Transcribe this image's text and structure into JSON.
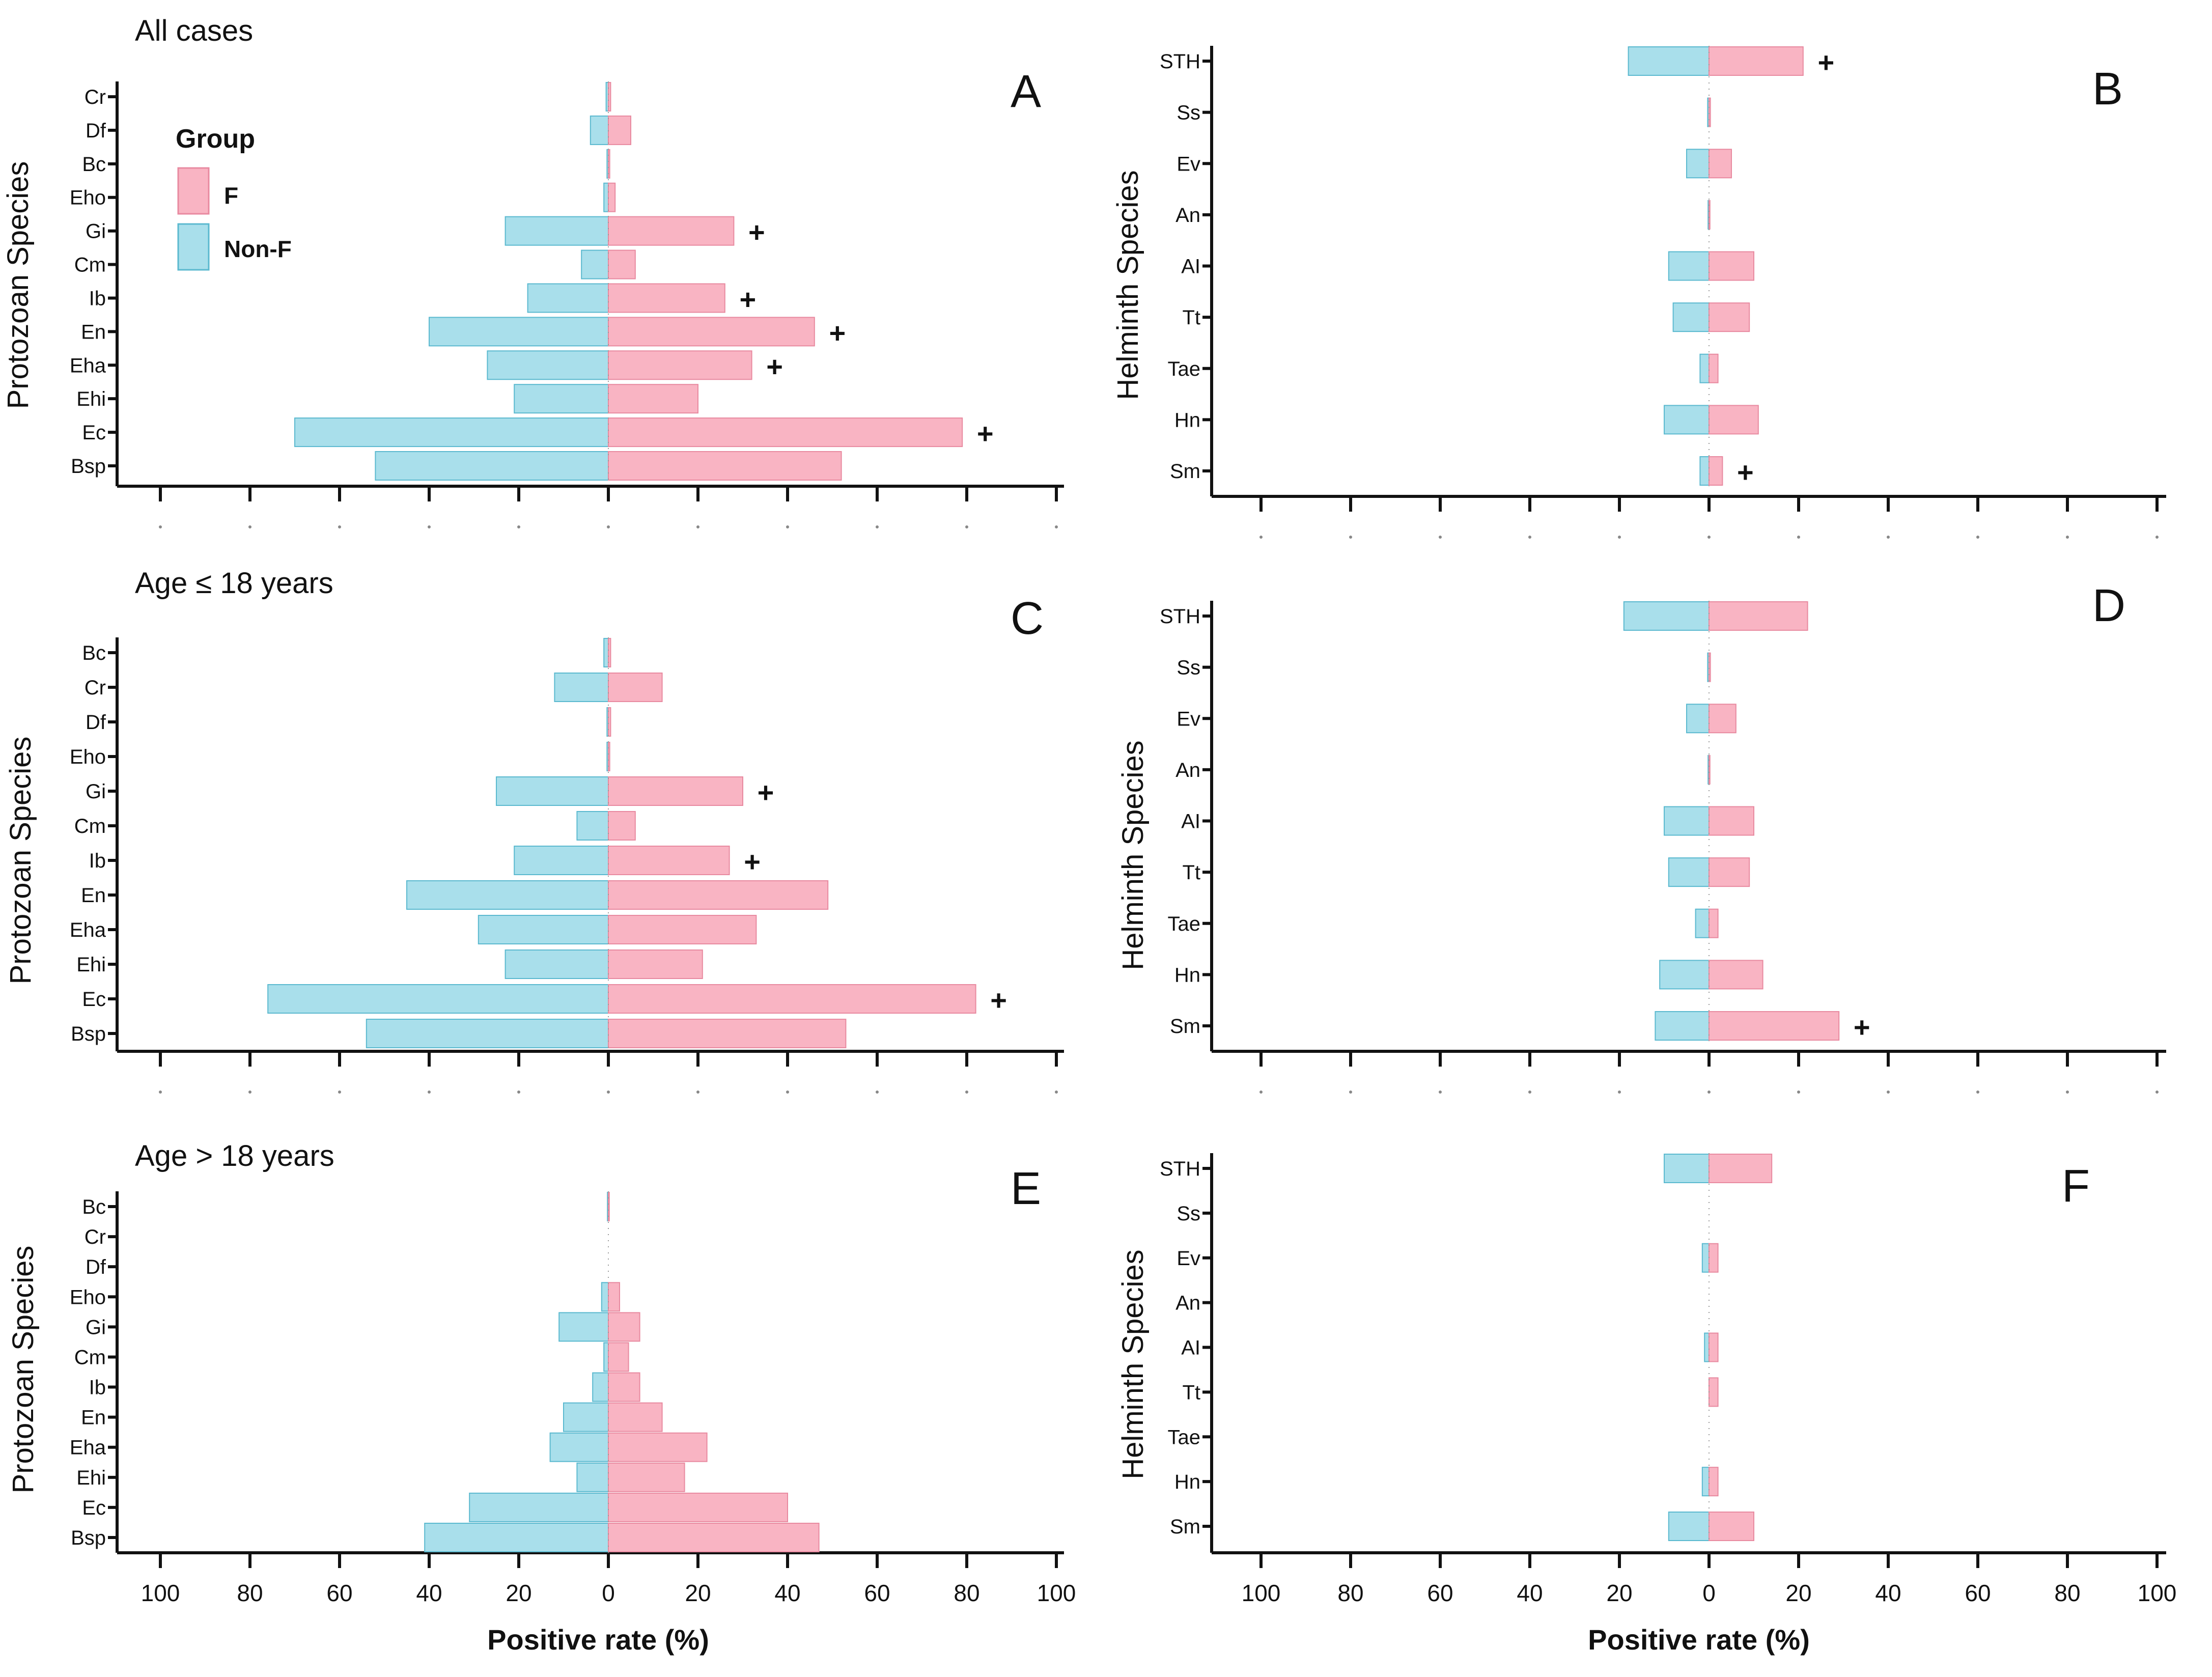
{
  "colors": {
    "F": "#f9b4c3",
    "F_edge": "#e88aa0",
    "NonF": "#a9dfeb",
    "NonF_edge": "#5bb9cf",
    "axis": "#111111"
  },
  "legend": {
    "title": "Group",
    "items": [
      "F",
      "Non-F"
    ]
  },
  "shared": {
    "xlabel": "Positive rate (%)",
    "xticks": [
      "100",
      "80",
      "60",
      "40",
      "20",
      "0",
      "20",
      "40",
      "60",
      "80",
      "100"
    ]
  },
  "chart_data": [
    {
      "type": "bar",
      "orientation": "diverging-horizontal",
      "panel": "A",
      "title": "All cases",
      "ylabel": "Protozoan Species",
      "xlabel": "Positive rate (%)",
      "xlim": [
        -100,
        100
      ],
      "categories": [
        "Cr",
        "Df",
        "Bc",
        "Eho",
        "Gi",
        "Cm",
        "Ib",
        "En",
        "Eha",
        "Ehi",
        "Ec",
        "Bsp"
      ],
      "series": [
        {
          "name": "F",
          "values": [
            0.5,
            5,
            0.3,
            1.5,
            28,
            6,
            26,
            46,
            32,
            20,
            79,
            52
          ]
        },
        {
          "name": "Non-F",
          "values": [
            0.5,
            4,
            0.3,
            1,
            23,
            6,
            18,
            40,
            27,
            21,
            70,
            52
          ]
        }
      ],
      "significant": [
        "Gi",
        "Ib",
        "En",
        "Eha",
        "Ec"
      ],
      "marker": "+"
    },
    {
      "type": "bar",
      "orientation": "diverging-horizontal",
      "panel": "B",
      "title": "",
      "ylabel": "Helminth Species",
      "xlabel": "Positive rate (%)",
      "xlim": [
        -100,
        100
      ],
      "categories": [
        "STH",
        "Ss",
        "Ev",
        "An",
        "AI",
        "Tt",
        "Tae",
        "Hn",
        "Sm"
      ],
      "series": [
        {
          "name": "F",
          "values": [
            21,
            0.3,
            5,
            0.2,
            10,
            9,
            2,
            11,
            3
          ]
        },
        {
          "name": "Non-F",
          "values": [
            18,
            0.3,
            5,
            0.2,
            9,
            8,
            2,
            10,
            2
          ]
        }
      ],
      "significant": [
        "STH",
        "Sm"
      ],
      "marker": "+"
    },
    {
      "type": "bar",
      "orientation": "diverging-horizontal",
      "panel": "C",
      "title": "Age ≤ 18 years",
      "ylabel": "Protozoan Species",
      "xlabel": "Positive rate (%)",
      "xlim": [
        -100,
        100
      ],
      "categories": [
        "Bc",
        "Cr",
        "Df",
        "Eho",
        "Gi",
        "Cm",
        "Ib",
        "En",
        "Eha",
        "Ehi",
        "Ec",
        "Bsp"
      ],
      "series": [
        {
          "name": "F",
          "values": [
            0.5,
            12,
            0.5,
            0.3,
            30,
            6,
            27,
            49,
            33,
            21,
            82,
            53
          ]
        },
        {
          "name": "Non-F",
          "values": [
            1,
            12,
            0.3,
            0.3,
            25,
            7,
            21,
            45,
            29,
            23,
            76,
            54
          ]
        }
      ],
      "significant": [
        "Gi",
        "Ib",
        "Ec"
      ],
      "marker": "+"
    },
    {
      "type": "bar",
      "orientation": "diverging-horizontal",
      "panel": "D",
      "title": "",
      "ylabel": "Helminth Species",
      "xlabel": "Positive rate (%)",
      "xlim": [
        -100,
        100
      ],
      "categories": [
        "STH",
        "Ss",
        "Ev",
        "An",
        "AI",
        "Tt",
        "Tae",
        "Hn",
        "Sm"
      ],
      "series": [
        {
          "name": "F",
          "values": [
            22,
            0.3,
            6,
            0.2,
            10,
            9,
            2,
            12,
            29
          ]
        },
        {
          "name": "Non-F",
          "values": [
            19,
            0.3,
            5,
            0.2,
            10,
            9,
            3,
            11,
            12
          ]
        }
      ],
      "significant": [
        "Sm"
      ],
      "marker": "+"
    },
    {
      "type": "bar",
      "orientation": "diverging-horizontal",
      "panel": "E",
      "title": "Age > 18 years",
      "ylabel": "Protozoan Species",
      "xlabel": "Positive rate (%)",
      "xlim": [
        -100,
        100
      ],
      "categories": [
        "Bc",
        "Cr",
        "Df",
        "Eho",
        "Gi",
        "Cm",
        "Ib",
        "En",
        "Eha",
        "Ehi",
        "Ec",
        "Bsp"
      ],
      "series": [
        {
          "name": "F",
          "values": [
            0.2,
            0,
            0,
            2.5,
            7,
            4.5,
            7,
            12,
            22,
            17,
            40,
            47
          ]
        },
        {
          "name": "Non-F",
          "values": [
            0.2,
            0,
            0,
            1.5,
            11,
            1,
            3.5,
            10,
            13,
            7,
            31,
            41
          ]
        }
      ],
      "significant": [],
      "marker": "+"
    },
    {
      "type": "bar",
      "orientation": "diverging-horizontal",
      "panel": "F",
      "title": "",
      "ylabel": "Helminth Species",
      "xlabel": "Positive rate (%)",
      "xlim": [
        -100,
        100
      ],
      "categories": [
        "STH",
        "Ss",
        "Ev",
        "An",
        "AI",
        "Tt",
        "Tae",
        "Hn",
        "Sm"
      ],
      "series": [
        {
          "name": "F",
          "values": [
            14,
            0,
            2,
            0,
            2,
            2,
            0,
            2,
            10
          ]
        },
        {
          "name": "Non-F",
          "values": [
            10,
            0,
            1.5,
            0,
            1,
            0,
            0,
            1.5,
            9
          ]
        }
      ],
      "significant": [],
      "marker": "+"
    }
  ]
}
